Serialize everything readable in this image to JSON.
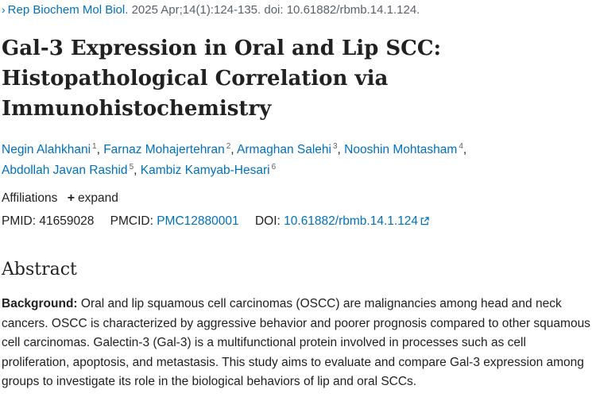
{
  "journal": {
    "name": "Rep Biochem Mol Biol.",
    "citation": " 2025 Apr;14(1):124-135. doi: 10.61882/rbmb.14.1.124."
  },
  "article": {
    "title": "Gal-3 Expression in Oral and Lip SCC: Histopathological Correlation via Immunohistochemistry"
  },
  "authors": [
    {
      "name": "Negin Alahkhani",
      "aff": "1"
    },
    {
      "name": "Farnaz Mohajertehran",
      "aff": "2"
    },
    {
      "name": "Armaghan Salehi",
      "aff": "3"
    },
    {
      "name": "Nooshin Mohtasham",
      "aff": "4"
    },
    {
      "name": "Abdollah Javan Rashid",
      "aff": "5"
    },
    {
      "name": "Kambiz Kamyab-Hesari",
      "aff": "6"
    }
  ],
  "affiliations": {
    "label": "Affiliations",
    "expand_label": "expand"
  },
  "identifiers": {
    "pmid_label": "PMID:",
    "pmid": "41659028",
    "pmcid_label": "PMCID:",
    "pmcid": "PMC12880001",
    "doi_label": "DOI:",
    "doi": "10.61882/rbmb.14.1.124"
  },
  "abstract": {
    "heading": "Abstract",
    "background_label": "Background:",
    "background_text": " Oral and lip squamous cell carcinomas (OSCC) are malignancies among head and neck cancers. OSCC is characterized by aggressive behavior and poorer prognosis compared to other squamous cell carcinomas. Galectin-3 (Gal-3) is a multifunctional protein involved in processes such as cell proliferation, apoptosis, and metastasis. This study aims to evaluate and compare Gal-3 expression among groups to investigate its role in the biological behaviors of lip and oral SCCs."
  },
  "icons": {
    "journal_chevron": "chevron-right-icon",
    "affiliations_expand": "plus-icon",
    "doi_external": "external-link-icon"
  },
  "colors": {
    "link": "#0071bc",
    "text": "#212121",
    "muted": "#5b616b"
  }
}
